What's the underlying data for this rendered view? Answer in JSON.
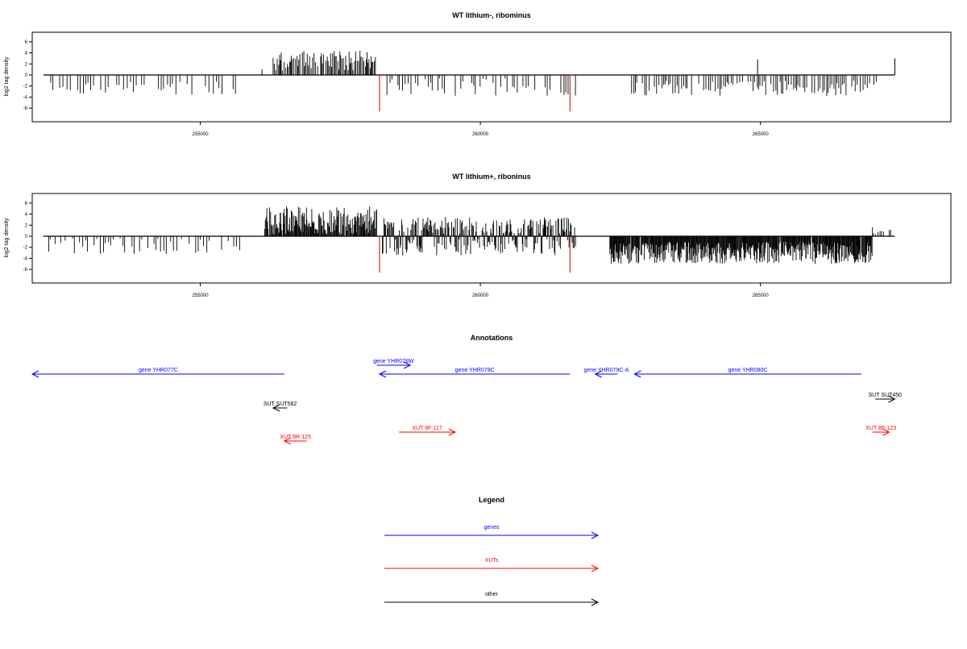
{
  "colors": {
    "bar": "#000000",
    "boundary": "#cc0000",
    "gene": "#0000ff",
    "xut": "#ff0000",
    "other": "#000000",
    "frame": "#000000"
  },
  "chart_data": [
    {
      "type": "bar",
      "title": "WT lithium-, ribominus",
      "ylabel": "log2 tag density",
      "xlim": [
        252000,
        268400
      ],
      "ylim": [
        -7,
        7
      ],
      "xticks": [
        255000,
        260000,
        265000
      ],
      "xtick_labels": [
        "255000",
        "260000",
        "265000"
      ],
      "yticks": [
        -6,
        -4,
        -2,
        0,
        2,
        4,
        6
      ],
      "ytick_labels": [
        "-6",
        "-4",
        "-2",
        "0",
        "2",
        "4",
        "6"
      ],
      "baseline_range": [
        252200,
        267400
      ],
      "boundary_lines": [
        {
          "x": 258200,
          "y": -6.6
        },
        {
          "x": 261600,
          "y": -6.6
        }
      ],
      "segments": [
        {
          "from": 252250,
          "to": 255750,
          "step": 60,
          "mean": -2.4,
          "amp": 1.2,
          "mode": "neg",
          "gap": 0.35
        },
        {
          "from": 256300,
          "to": 258150,
          "step": 22,
          "mean": 2.6,
          "amp": 1.8,
          "mode": "pos",
          "gap": 0.1
        },
        {
          "from": 258250,
          "to": 261700,
          "step": 42,
          "mean": -2.2,
          "amp": 1.6,
          "mode": "neg",
          "gap": 0.4
        },
        {
          "from": 262700,
          "to": 267100,
          "step": 38,
          "mean": -2.4,
          "amp": 1.4,
          "mode": "neg",
          "gap": 0.15
        }
      ],
      "extra_bars": [
        {
          "x": 256100,
          "y": 1.0
        },
        {
          "x": 264950,
          "y": 2.8
        },
        {
          "x": 267400,
          "y": 3.0
        }
      ],
      "seed": 7
    },
    {
      "type": "bar",
      "title": "WT lithium+, riboninus",
      "ylabel": "log2 tag density",
      "xlim": [
        252000,
        268400
      ],
      "ylim": [
        -7,
        7
      ],
      "xticks": [
        255000,
        260000,
        265000
      ],
      "xtick_labels": [
        "255000",
        "260000",
        "265000"
      ],
      "yticks": [
        -6,
        -4,
        -2,
        0,
        2,
        4,
        6
      ],
      "ytick_labels": [
        "-6",
        "-4",
        "-2",
        "0",
        "2",
        "4",
        "6"
      ],
      "baseline_range": [
        252200,
        267400
      ],
      "boundary_lines": [
        {
          "x": 258200,
          "y": -6.6
        },
        {
          "x": 261600,
          "y": -6.6
        }
      ],
      "segments": [
        {
          "from": 252250,
          "to": 255750,
          "step": 45,
          "mean": -1.8,
          "amp": 1.4,
          "mode": "neg",
          "gap": 0.3
        },
        {
          "from": 256150,
          "to": 258150,
          "step": 12,
          "mean": 2.8,
          "amp": 2.6,
          "mode": "pos",
          "gap": 0.02
        },
        {
          "from": 258250,
          "to": 261700,
          "step": 14,
          "mean": 0.0,
          "amp": 3.0,
          "mode": "mixed",
          "gap": 0.05
        },
        {
          "from": 262300,
          "to": 267000,
          "step": 11,
          "mean": -3.0,
          "amp": 2.0,
          "mode": "neg",
          "gap": 0.02
        },
        {
          "from": 267000,
          "to": 267350,
          "step": 30,
          "mean": 1.2,
          "amp": 1.0,
          "mode": "pos",
          "gap": 0.1
        }
      ],
      "extra_bars": [],
      "seed": 13
    }
  ],
  "annotations": {
    "title": "Annotations",
    "xlim": [
      252000,
      268400
    ],
    "features": [
      {
        "label": "gene YHR077C",
        "color": "gene",
        "start": 256500,
        "end": 252000,
        "row": 1
      },
      {
        "label": "gene YHR078W",
        "color": "gene",
        "start": 258150,
        "end": 258750,
        "row": 0
      },
      {
        "label": "gene YHR079C",
        "color": "gene",
        "start": 261600,
        "end": 258200,
        "row": 1
      },
      {
        "label": "gene YHR079C-A",
        "color": "gene",
        "start": 262450,
        "end": 262050,
        "row": 1
      },
      {
        "label": "gene YHR080C",
        "color": "gene",
        "start": 266800,
        "end": 262750,
        "row": 1
      },
      {
        "label": "SUT SUT582",
        "color": "other",
        "start": 256550,
        "end": 256300,
        "row": 3
      },
      {
        "label": "SUT SUT450",
        "color": "other",
        "start": 267050,
        "end": 267400,
        "row": 2
      },
      {
        "label": "XUT 8R-125",
        "color": "xut",
        "start": 256900,
        "end": 256500,
        "row": 5
      },
      {
        "label": "XUT 8F-117",
        "color": "xut",
        "start": 258550,
        "end": 259550,
        "row": 4
      },
      {
        "label": "XUT 8F-123",
        "color": "xut",
        "start": 267000,
        "end": 267300,
        "row": 4
      }
    ]
  },
  "legend": {
    "title": "Legend",
    "items": [
      {
        "label": "genes",
        "color": "gene"
      },
      {
        "label": "XUTs",
        "color": "xut"
      },
      {
        "label": "other",
        "color": "other"
      }
    ]
  }
}
